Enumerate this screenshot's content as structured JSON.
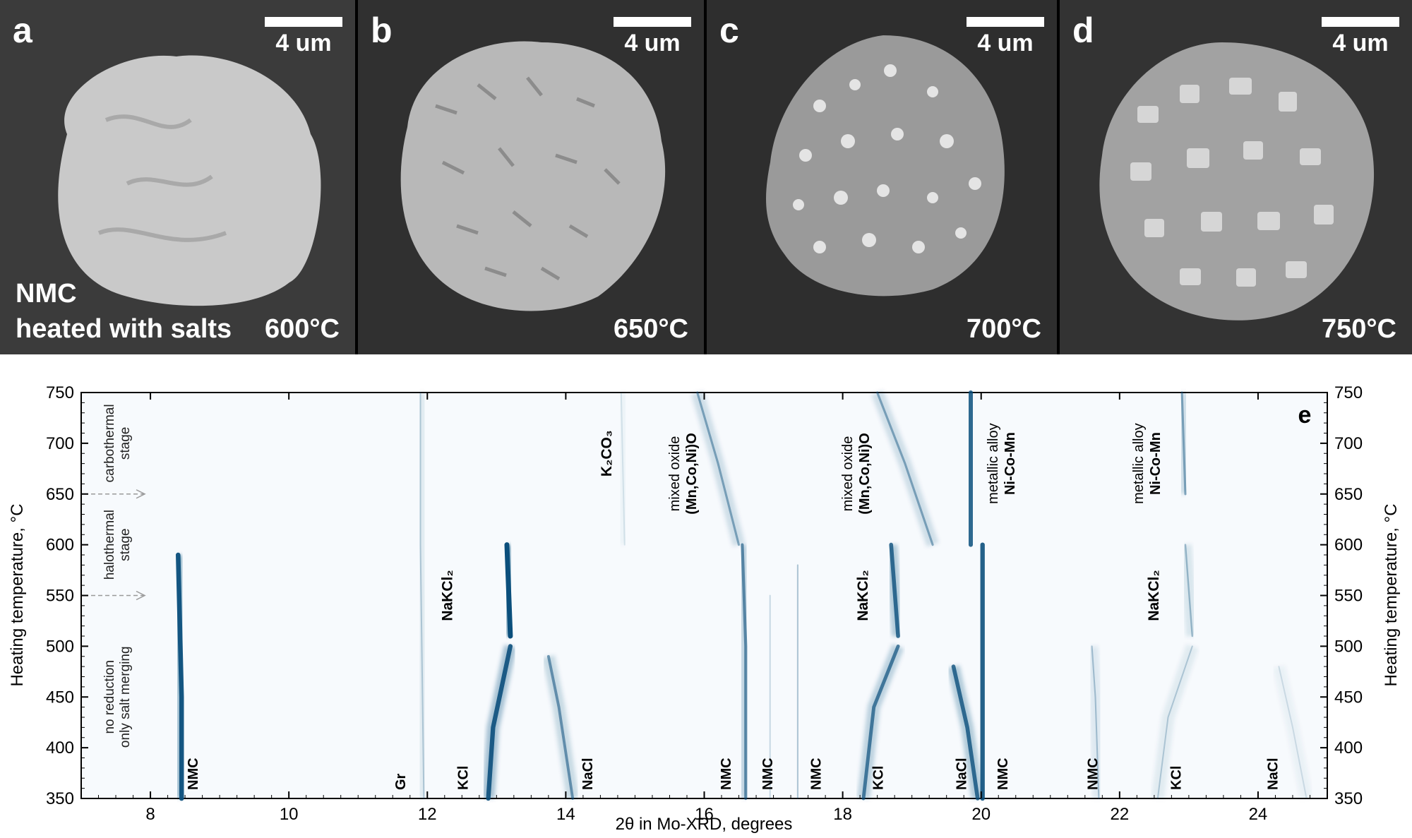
{
  "panels": [
    {
      "letter": "a",
      "scale": "4 um",
      "caption_line1": "NMC",
      "caption_line2": "heated with salts",
      "temp": "600°C"
    },
    {
      "letter": "b",
      "scale": "4 um",
      "temp": "650°C"
    },
    {
      "letter": "c",
      "scale": "4 um",
      "temp": "700°C"
    },
    {
      "letter": "d",
      "scale": "4 um",
      "temp": "750°C"
    }
  ],
  "colors": {
    "trace": "#0b4f7c",
    "sem_bg": "#3a3a3a",
    "particle": "#bdbdbd"
  },
  "chart_data": {
    "type": "heatmap",
    "panel_letter": "e",
    "xlabel": "2θ in Mo-XRD, degrees",
    "ylabel_left": "Heating temperature, °C",
    "ylabel_right": "Heating temperature, °C",
    "xlim": [
      7,
      25
    ],
    "ylim": [
      350,
      750
    ],
    "x_ticks": [
      8,
      10,
      12,
      14,
      16,
      18,
      20,
      22,
      24
    ],
    "y_ticks": [
      350,
      400,
      450,
      500,
      550,
      600,
      650,
      700,
      750
    ],
    "stage_labels": [
      {
        "line1": "no reduction",
        "line2": "only salt merging"
      },
      {
        "line1": "halothermal",
        "line2": "stage"
      },
      {
        "line1": "carbothermal",
        "line2": "stage"
      }
    ],
    "stage_boundaries": [
      550,
      650
    ],
    "bottom_labels": [
      {
        "text": "NMC",
        "x": 8.6
      },
      {
        "text": "Gr",
        "x": 11.6
      },
      {
        "text": "KCl",
        "x": 12.5
      },
      {
        "text": "NaCl",
        "x": 14.3
      },
      {
        "text": "NMC",
        "x": 16.3
      },
      {
        "text": "NMC",
        "x": 16.9
      },
      {
        "text": "NMC",
        "x": 17.6
      },
      {
        "text": "KCl",
        "x": 18.5
      },
      {
        "text": "NaCl",
        "x": 19.7
      },
      {
        "text": "NMC",
        "x": 20.3
      },
      {
        "text": "NMC",
        "x": 21.6
      },
      {
        "text": "KCl",
        "x": 22.8
      },
      {
        "text": "NaCl",
        "x": 24.2
      }
    ],
    "phase_labels": [
      {
        "text": "NaKCl₂",
        "x": 12.3,
        "y": 550
      },
      {
        "text": "NaKCl₂",
        "x": 18.3,
        "y": 550
      },
      {
        "text": "NaKCl₂",
        "x": 22.5,
        "y": 550
      },
      {
        "text": "K₂CO₃",
        "x": 14.6,
        "y": 690
      },
      {
        "text": "mixed oxide",
        "line2": "(Mn,Co,Ni)O",
        "x": 15.7,
        "y": 670
      },
      {
        "text": "mixed oxide",
        "line2": "(Mn,Co,Ni)O",
        "x": 18.2,
        "y": 670
      },
      {
        "text": "metallic alloy",
        "line2": "Ni-Co-Mn",
        "x": 20.3,
        "y": 680
      },
      {
        "text": "metallic alloy",
        "line2": "Ni-Co-Mn",
        "x": 22.4,
        "y": 680
      }
    ],
    "series": [
      {
        "name": "NMC",
        "points": [
          [
            8.45,
            350
          ],
          [
            8.45,
            450
          ],
          [
            8.4,
            590
          ]
        ],
        "intensity": 0.95
      },
      {
        "name": "Gr",
        "points": [
          [
            11.95,
            350
          ],
          [
            11.9,
            600
          ],
          [
            11.9,
            750
          ]
        ],
        "intensity": 0.25
      },
      {
        "name": "KCl",
        "points": [
          [
            12.88,
            350
          ],
          [
            12.95,
            420
          ],
          [
            13.2,
            500
          ]
        ],
        "intensity": 0.9
      },
      {
        "name": "NaKCl₂",
        "points": [
          [
            13.2,
            510
          ],
          [
            13.15,
            600
          ]
        ],
        "intensity": 1.0
      },
      {
        "name": "NaCl",
        "points": [
          [
            14.1,
            350
          ],
          [
            13.9,
            440
          ],
          [
            13.75,
            490
          ]
        ],
        "intensity": 0.55
      },
      {
        "name": "NMC",
        "points": [
          [
            16.6,
            350
          ],
          [
            16.6,
            500
          ],
          [
            16.55,
            600
          ]
        ],
        "intensity": 0.6
      },
      {
        "name": "NMC",
        "points": [
          [
            16.95,
            350
          ],
          [
            16.95,
            550
          ]
        ],
        "intensity": 0.2
      },
      {
        "name": "NMC",
        "points": [
          [
            17.35,
            350
          ],
          [
            17.35,
            580
          ]
        ],
        "intensity": 0.3
      },
      {
        "name": "KCl",
        "points": [
          [
            18.3,
            350
          ],
          [
            18.45,
            440
          ],
          [
            18.8,
            500
          ]
        ],
        "intensity": 0.7
      },
      {
        "name": "NaKCl₂",
        "points": [
          [
            18.8,
            510
          ],
          [
            18.7,
            600
          ]
        ],
        "intensity": 0.8
      },
      {
        "name": "NaCl",
        "points": [
          [
            19.95,
            350
          ],
          [
            19.8,
            420
          ],
          [
            19.6,
            480
          ]
        ],
        "intensity": 0.8
      },
      {
        "name": "NMC",
        "points": [
          [
            20.02,
            350
          ],
          [
            20.02,
            600
          ]
        ],
        "intensity": 0.9
      },
      {
        "name": "NMC",
        "points": [
          [
            21.7,
            350
          ],
          [
            21.65,
            450
          ],
          [
            21.6,
            500
          ]
        ],
        "intensity": 0.3
      },
      {
        "name": "KCl",
        "points": [
          [
            22.55,
            350
          ],
          [
            22.7,
            430
          ],
          [
            23.05,
            500
          ]
        ],
        "intensity": 0.25
      },
      {
        "name": "NaKCl₂",
        "points": [
          [
            23.05,
            510
          ],
          [
            22.95,
            600
          ]
        ],
        "intensity": 0.35
      },
      {
        "name": "NaCl",
        "points": [
          [
            24.7,
            350
          ],
          [
            24.5,
            420
          ],
          [
            24.3,
            480
          ]
        ],
        "intensity": 0.15
      },
      {
        "name": "(Mn,Co,Ni)O",
        "points": [
          [
            16.5,
            600
          ],
          [
            16.2,
            680
          ],
          [
            15.9,
            750
          ]
        ],
        "intensity": 0.45
      },
      {
        "name": "(Mn,Co,Ni)O",
        "points": [
          [
            19.3,
            600
          ],
          [
            18.9,
            680
          ],
          [
            18.5,
            750
          ]
        ],
        "intensity": 0.45
      },
      {
        "name": "Ni-Co-Mn",
        "points": [
          [
            19.85,
            600
          ],
          [
            19.85,
            750
          ]
        ],
        "intensity": 0.85
      },
      {
        "name": "Ni-Co-Mn",
        "points": [
          [
            22.95,
            650
          ],
          [
            22.9,
            750
          ]
        ],
        "intensity": 0.45
      },
      {
        "name": "K₂CO₃",
        "points": [
          [
            14.85,
            600
          ],
          [
            14.8,
            750
          ]
        ],
        "intensity": 0.12
      }
    ]
  }
}
